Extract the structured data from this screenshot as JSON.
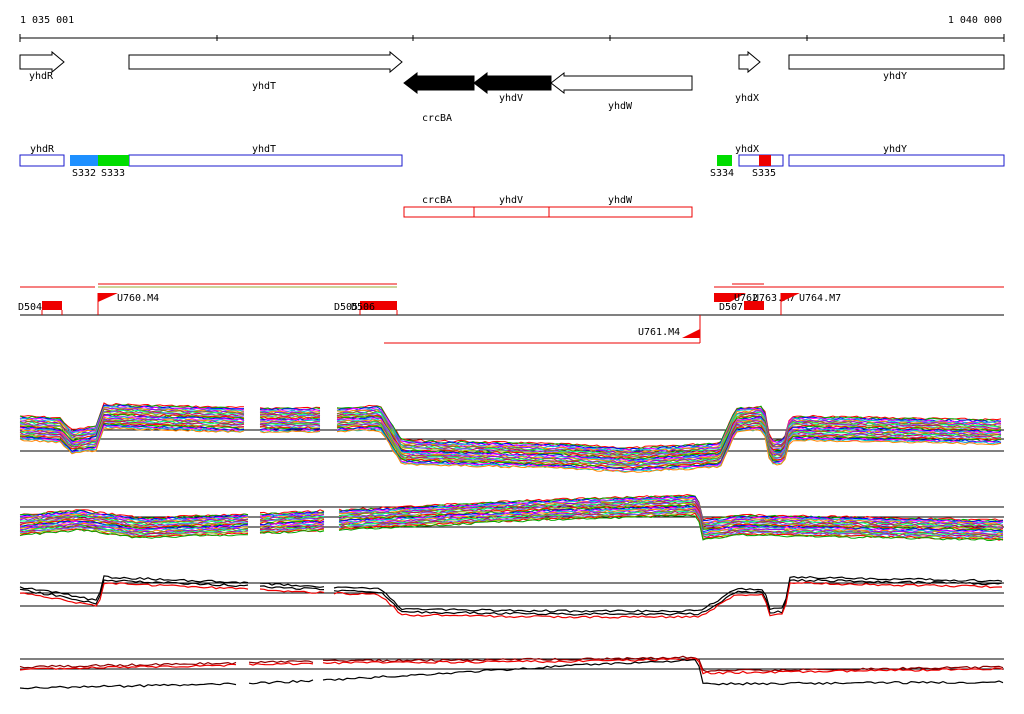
{
  "coordinates": {
    "start": "1 035 001",
    "end": "1 040 000"
  },
  "genes": [
    {
      "name": "yhdR",
      "strand": "+",
      "style": "outline"
    },
    {
      "name": "yhdT",
      "strand": "+",
      "style": "outline"
    },
    {
      "name": "crcBA",
      "strand": "-",
      "style": "filled"
    },
    {
      "name": "yhdV",
      "strand": "-",
      "style": "filled"
    },
    {
      "name": "yhdW",
      "strand": "-",
      "style": "outline"
    },
    {
      "name": "yhdX",
      "strand": "+",
      "style": "outline"
    },
    {
      "name": "yhdY",
      "strand": "+",
      "style": "outline"
    }
  ],
  "forward_features": [
    {
      "name": "yhdR",
      "kind": "gene-box"
    },
    {
      "name": "yhdT",
      "kind": "gene-box"
    },
    {
      "name": "yhdX",
      "kind": "gene-box"
    },
    {
      "name": "yhdY",
      "kind": "gene-box"
    },
    {
      "name": "S332",
      "kind": "segment",
      "color": "#1e90ff"
    },
    {
      "name": "S333",
      "kind": "segment",
      "color": "#00dd00"
    },
    {
      "name": "S334",
      "kind": "segment",
      "color": "#00dd00"
    },
    {
      "name": "S335",
      "kind": "segment",
      "color": "#ee0000"
    }
  ],
  "reverse_features": [
    {
      "name": "crcBA",
      "kind": "gene-box"
    },
    {
      "name": "yhdV",
      "kind": "gene-box"
    },
    {
      "name": "yhdW",
      "kind": "gene-box"
    }
  ],
  "transcription_marks": [
    {
      "name": "D504",
      "kind": "downshift"
    },
    {
      "name": "U760.M4",
      "kind": "upshift"
    },
    {
      "name": "D505",
      "kind": "downshift"
    },
    {
      "name": "D506",
      "kind": "downshift"
    },
    {
      "name": "D507",
      "kind": "downshift"
    },
    {
      "name": "U761.M4",
      "kind": "upshift"
    },
    {
      "name": "U762",
      "kind": "upshift"
    },
    {
      "name": "U763.M7",
      "kind": "upshift"
    },
    {
      "name": "U764.M7",
      "kind": "upshift"
    }
  ],
  "colors": {
    "track_red": "#ee0000",
    "gene_blue": "#1a1acc",
    "profile_palette": [
      "#ff0000",
      "#00aa00",
      "#0000ff",
      "#ff00ff",
      "#00cccc",
      "#ff8800",
      "#8800ff",
      "#888800",
      "#00ff88",
      "#cc0066",
      "#6666ff",
      "#99cc00"
    ]
  }
}
